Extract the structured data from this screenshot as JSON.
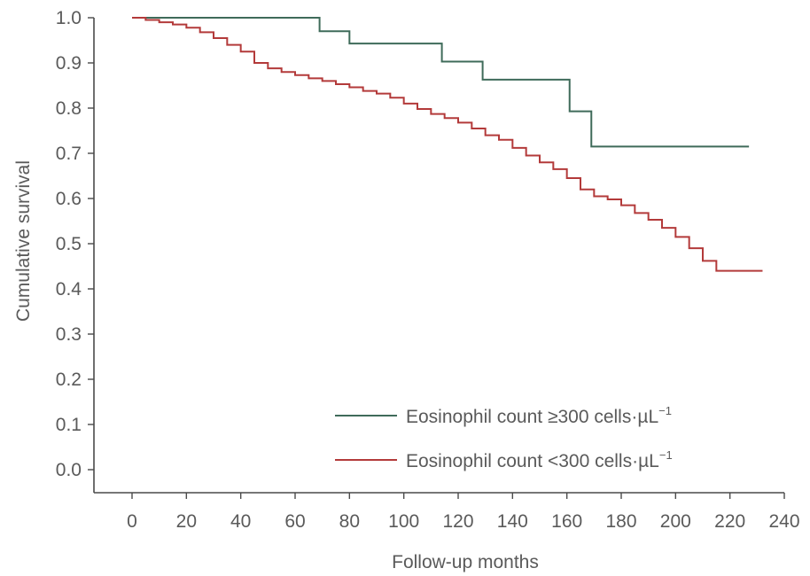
{
  "chart_data": {
    "type": "line",
    "step": true,
    "xlabel": "Follow-up months",
    "ylabel": "Cumulative survival",
    "xlim": [
      -10,
      240
    ],
    "ylim": [
      -0.05,
      1.0
    ],
    "xticks": [
      "0",
      "20",
      "40",
      "60",
      "80",
      "100",
      "120",
      "140",
      "160",
      "180",
      "200",
      "220",
      "240"
    ],
    "yticks": [
      "0.0",
      "0.1",
      "0.2",
      "0.3",
      "0.4",
      "0.5",
      "0.6",
      "0.7",
      "0.8",
      "0.9",
      "1.0"
    ],
    "legend_position": "bottom-right",
    "series": [
      {
        "name": "Eosinophil count ≥300 cells·µL",
        "name_sup": "−1",
        "color": "#3f6b5a",
        "x": [
          0,
          69,
          80,
          114,
          129,
          161,
          169,
          227
        ],
        "y": [
          1.0,
          0.97,
          0.943,
          0.903,
          0.863,
          0.793,
          0.715,
          0.715
        ]
      },
      {
        "name": "Eosinophil count <300 cells·µL",
        "name_sup": "−1",
        "color": "#b33a3a",
        "x": [
          0,
          5,
          10,
          15,
          20,
          25,
          30,
          35,
          40,
          45,
          50,
          55,
          60,
          65,
          70,
          75,
          80,
          85,
          90,
          95,
          100,
          105,
          110,
          115,
          120,
          125,
          130,
          135,
          140,
          145,
          150,
          155,
          160,
          165,
          170,
          175,
          180,
          185,
          190,
          195,
          200,
          205,
          210,
          215,
          220,
          225,
          232
        ],
        "y": [
          1.0,
          0.995,
          0.99,
          0.985,
          0.978,
          0.968,
          0.955,
          0.94,
          0.925,
          0.9,
          0.888,
          0.88,
          0.873,
          0.866,
          0.86,
          0.853,
          0.846,
          0.838,
          0.832,
          0.823,
          0.81,
          0.798,
          0.787,
          0.778,
          0.768,
          0.755,
          0.74,
          0.73,
          0.712,
          0.695,
          0.68,
          0.665,
          0.645,
          0.62,
          0.605,
          0.598,
          0.585,
          0.568,
          0.553,
          0.535,
          0.515,
          0.49,
          0.462,
          0.44,
          0.44,
          0.44,
          0.44
        ]
      }
    ]
  }
}
